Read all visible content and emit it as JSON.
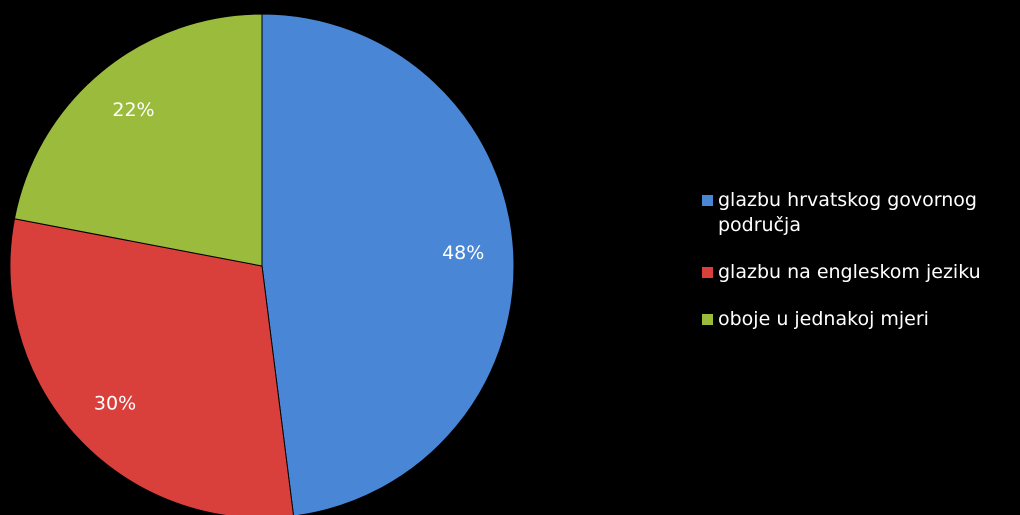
{
  "chart_data": {
    "type": "pie",
    "categories": [
      "glazbu hrvatskog govornog područja",
      "glazbu na engleskom jeziku",
      "oboje u jednakoj mjeri"
    ],
    "values": [
      48,
      30,
      22
    ],
    "value_labels": [
      "48%",
      "30%",
      "22%"
    ],
    "colors": [
      "#4a86d6",
      "#d9403c",
      "#9bbb3c"
    ],
    "legend": "right"
  }
}
